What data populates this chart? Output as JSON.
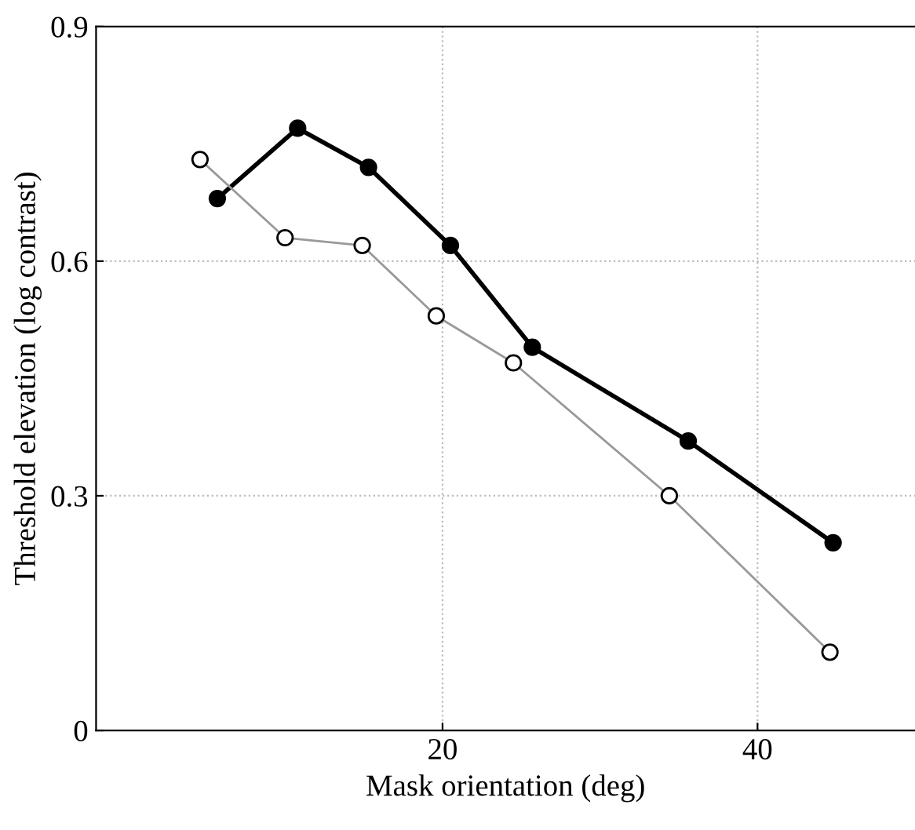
{
  "chart_data": {
    "type": "line",
    "xlabel": "Mask orientation (deg)",
    "ylabel": "Threshold elevation (log contrast)",
    "xlim": [
      -2,
      50
    ],
    "xticks": [
      20,
      40
    ],
    "ylim": [
      0,
      0.9
    ],
    "yticks": [
      0,
      0.3,
      0.6,
      0.9
    ],
    "grid": true,
    "marker": "circle",
    "line_style": "solid",
    "series": [
      {
        "color": "#000000",
        "x": [
          5.7,
          10.8,
          15.3,
          20.5,
          25.7,
          35.6,
          44.8
        ],
        "values": [
          0.68,
          0.77,
          0.72,
          0.62,
          0.49,
          0.37,
          0.24
        ]
      },
      {
        "color": "#999999",
        "x": [
          4.6,
          10,
          14.9,
          19.6,
          24.5,
          34.4,
          44.6
        ],
        "values": [
          0.73,
          0.63,
          0.62,
          0.53,
          0.47,
          0.3,
          0.1
        ]
      }
    ]
  }
}
